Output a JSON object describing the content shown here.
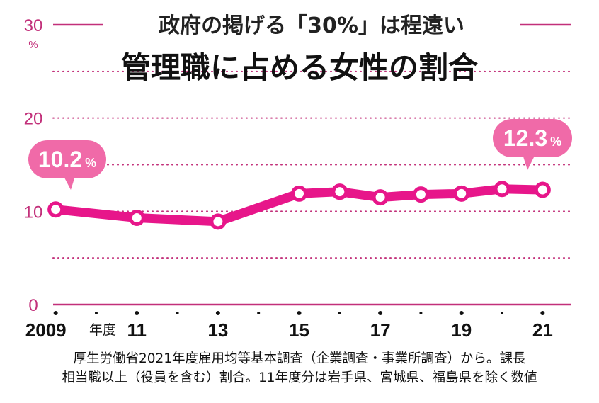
{
  "subtitle": "政府の掲げる「30%」は程遠い",
  "title": "管理職に占める女性の割合",
  "source_line1": "厚生労働省2021年度雇用均等基本調査（企業調査・事業所調査）から。課長",
  "source_line2": "相当職以上（役員を含む）割合。11年度分は岩手県、宮城県、福島県を除く数値",
  "callouts": {
    "first": {
      "value": "10.2",
      "unit": "%"
    },
    "last": {
      "value": "12.3",
      "unit": "%"
    }
  },
  "colors": {
    "accent": "#e7168a",
    "axis": "#c2307a",
    "callout": "#f06aa8",
    "text": "#111111"
  },
  "chart_data": {
    "type": "line",
    "title": "管理職に占める女性の割合",
    "subtitle": "政府の掲げる「30%」は程遠い",
    "x": [
      2009,
      2011,
      2013,
      2015,
      2016,
      2017,
      2018,
      2019,
      2020,
      2021
    ],
    "x_tick_labels": [
      "2009",
      "11",
      "13",
      "15",
      "17",
      "19",
      "21"
    ],
    "x_tick_values": [
      2009,
      2011,
      2013,
      2015,
      2017,
      2019,
      2021
    ],
    "x_unit": "年度",
    "y_tick_labels": [
      "30",
      "20",
      "10",
      "0"
    ],
    "y_tick_values": [
      30,
      20,
      10,
      0
    ],
    "y_unit": "%",
    "ylim": [
      0,
      30
    ],
    "xlim": [
      2008.5,
      2021.5
    ],
    "grid": true,
    "series": [
      {
        "values": [
          10.2,
          9.3,
          8.9,
          11.9,
          12.1,
          11.5,
          11.8,
          11.9,
          12.4,
          12.3
        ]
      }
    ]
  }
}
